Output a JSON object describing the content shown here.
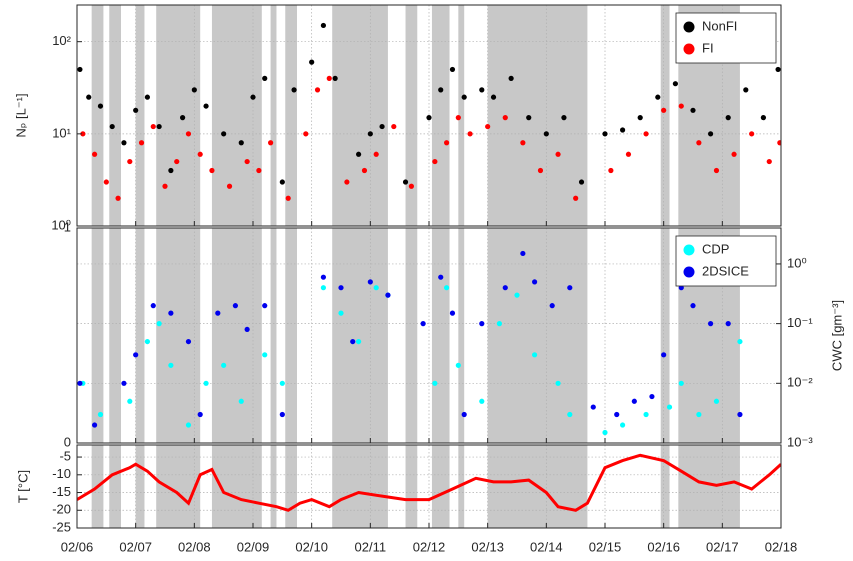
{
  "chart_data": [
    {
      "type": "scatter",
      "ylabel": "Nₚ [L⁻¹]",
      "yscale": "log",
      "ylim": [
        1,
        250
      ],
      "yticks": [
        {
          "value": 1,
          "label": "10⁰"
        },
        {
          "value": 10,
          "label": "10¹"
        },
        {
          "value": 100,
          "label": "10²"
        }
      ],
      "xlim": [
        6,
        18
      ],
      "xticks": [
        6,
        7,
        8,
        9,
        10,
        11,
        12,
        13,
        14,
        15,
        16,
        17,
        18
      ],
      "grid": true,
      "legend": "upper right",
      "shaded": [
        [
          6.25,
          6.45
        ],
        [
          6.55,
          6.75
        ],
        [
          7.0,
          7.15
        ],
        [
          7.35,
          8.1
        ],
        [
          8.3,
          9.15
        ],
        [
          9.3,
          9.4
        ],
        [
          9.55,
          9.75
        ],
        [
          10.35,
          11.3
        ],
        [
          11.6,
          11.8
        ],
        [
          12.05,
          12.35
        ],
        [
          12.5,
          12.6
        ],
        [
          13.0,
          14.7
        ],
        [
          15.95,
          16.1
        ],
        [
          16.25,
          17.3
        ]
      ],
      "series": [
        {
          "name": "NonFI",
          "color": "#000000",
          "x": [
            6.05,
            6.2,
            6.4,
            6.6,
            6.8,
            7.0,
            7.2,
            7.4,
            7.6,
            7.8,
            8.0,
            8.2,
            8.5,
            8.8,
            9.0,
            9.2,
            9.5,
            9.7,
            10.0,
            10.2,
            10.4,
            10.8,
            11.0,
            11.2,
            11.6,
            12.0,
            12.2,
            12.4,
            12.6,
            12.9,
            13.1,
            13.4,
            13.7,
            14.0,
            14.3,
            14.6,
            15.0,
            15.3,
            15.6,
            15.9,
            16.2,
            16.5,
            16.8,
            17.1,
            17.4,
            17.7,
            17.95
          ],
          "values": [
            50,
            25,
            20,
            12,
            8,
            18,
            25,
            12,
            4,
            15,
            30,
            20,
            10,
            8,
            25,
            40,
            3,
            30,
            60,
            150,
            40,
            6,
            10,
            12,
            3,
            15,
            30,
            50,
            25,
            30,
            25,
            40,
            15,
            10,
            15,
            3,
            10,
            11,
            15,
            25,
            35,
            18,
            10,
            15,
            30,
            15,
            50
          ]
        },
        {
          "name": "FI",
          "color": "#ff0000",
          "x": [
            6.1,
            6.3,
            6.5,
            6.7,
            6.9,
            7.1,
            7.3,
            7.5,
            7.7,
            7.9,
            8.1,
            8.3,
            8.6,
            8.9,
            9.1,
            9.3,
            9.6,
            9.9,
            10.1,
            10.3,
            10.6,
            10.9,
            11.1,
            11.4,
            11.7,
            12.1,
            12.3,
            12.5,
            12.7,
            13.0,
            13.3,
            13.6,
            13.9,
            14.2,
            14.5,
            15.1,
            15.4,
            15.7,
            16.0,
            16.3,
            16.6,
            16.9,
            17.2,
            17.5,
            17.8,
            17.98
          ],
          "values": [
            10,
            6,
            3,
            2,
            5,
            8,
            12,
            2.7,
            5,
            10,
            6,
            4,
            2.7,
            5,
            4,
            8,
            2,
            10,
            30,
            40,
            3,
            4,
            6,
            12,
            2.7,
            5,
            8,
            15,
            10,
            12,
            15,
            8,
            4,
            6,
            2,
            4,
            6,
            10,
            18,
            20,
            8,
            4,
            6,
            10,
            5,
            8
          ]
        }
      ]
    },
    {
      "type": "scatter",
      "ylim": [
        0,
        1
      ],
      "yticks": [
        0,
        1
      ],
      "y2label": "CWC [gm⁻³]",
      "y2scale": "log",
      "y2lim": [
        0.001,
        4
      ],
      "y2ticks": [
        {
          "value": 0.001,
          "label": "10⁻³"
        },
        {
          "value": 0.01,
          "label": "10⁻²"
        },
        {
          "value": 0.1,
          "label": "10⁻¹"
        },
        {
          "value": 1,
          "label": "10⁰"
        }
      ],
      "xlim": [
        6,
        18
      ],
      "xticks": [
        6,
        7,
        8,
        9,
        10,
        11,
        12,
        13,
        14,
        15,
        16,
        17,
        18
      ],
      "grid": true,
      "legend": "upper right",
      "series": [
        {
          "name": "CDP",
          "color": "#00ffff",
          "axis": "y2",
          "x": [
            6.1,
            6.4,
            6.9,
            7.2,
            7.4,
            7.6,
            7.9,
            8.2,
            8.5,
            8.8,
            9.2,
            9.5,
            10.2,
            10.5,
            10.8,
            11.1,
            11.3,
            12.1,
            12.3,
            12.5,
            12.9,
            13.2,
            13.5,
            13.8,
            14.2,
            14.4,
            15.0,
            15.3,
            15.7,
            16.1,
            16.3,
            16.6,
            16.9,
            17.3
          ],
          "values": [
            0.01,
            0.003,
            0.005,
            0.05,
            0.1,
            0.02,
            0.002,
            0.01,
            0.02,
            0.005,
            0.03,
            0.01,
            0.4,
            0.15,
            0.05,
            0.4,
            0.3,
            0.01,
            0.4,
            0.02,
            0.005,
            0.1,
            0.3,
            0.03,
            0.01,
            0.003,
            0.0015,
            0.002,
            0.003,
            0.004,
            0.01,
            0.003,
            0.005,
            0.05
          ]
        },
        {
          "name": "2DSICE",
          "color": "#0000ee",
          "axis": "y2",
          "x": [
            6.05,
            6.3,
            6.8,
            7.0,
            7.3,
            7.6,
            7.9,
            8.1,
            8.4,
            8.7,
            8.9,
            9.2,
            9.5,
            10.2,
            10.5,
            10.7,
            11.0,
            11.3,
            11.9,
            12.2,
            12.4,
            12.6,
            12.9,
            13.3,
            13.6,
            13.8,
            14.1,
            14.4,
            14.8,
            15.2,
            15.5,
            15.8,
            16.0,
            16.3,
            16.5,
            16.8,
            17.1,
            17.3
          ],
          "values": [
            0.01,
            0.002,
            0.01,
            0.03,
            0.2,
            0.15,
            0.05,
            0.003,
            0.15,
            0.2,
            0.08,
            0.2,
            0.003,
            0.6,
            0.4,
            0.05,
            0.5,
            0.3,
            0.1,
            0.6,
            0.15,
            0.003,
            0.1,
            0.4,
            1.5,
            0.5,
            0.2,
            0.4,
            0.004,
            0.003,
            0.005,
            0.006,
            0.03,
            0.4,
            0.2,
            0.1,
            0.1,
            0.003
          ]
        }
      ]
    },
    {
      "type": "line",
      "ylabel": "T [°C]",
      "ylim": [
        -25,
        -1.6
      ],
      "yticks": [
        -5,
        -10,
        -15,
        -20,
        -25
      ],
      "grid": true,
      "xlim": [
        6,
        18
      ],
      "xticks": [
        {
          "value": 6,
          "label": "02/06"
        },
        {
          "value": 7,
          "label": "02/07"
        },
        {
          "value": 8,
          "label": "02/08"
        },
        {
          "value": 9,
          "label": "02/09"
        },
        {
          "value": 10,
          "label": "02/10"
        },
        {
          "value": 11,
          "label": "02/11"
        },
        {
          "value": 12,
          "label": "02/12"
        },
        {
          "value": 13,
          "label": "02/13"
        },
        {
          "value": 14,
          "label": "02/14"
        },
        {
          "value": 15,
          "label": "02/15"
        },
        {
          "value": 16,
          "label": "02/16"
        },
        {
          "value": 17,
          "label": "02/17"
        },
        {
          "value": 18,
          "label": "02/18"
        }
      ],
      "series": [
        {
          "color": "#ff0000",
          "x": [
            6,
            6.3,
            6.6,
            6.9,
            7.0,
            7.2,
            7.4,
            7.7,
            7.9,
            8.1,
            8.3,
            8.5,
            8.8,
            9.1,
            9.4,
            9.6,
            9.8,
            10.0,
            10.3,
            10.5,
            10.8,
            11.2,
            11.6,
            12.0,
            12.4,
            12.8,
            13.1,
            13.4,
            13.7,
            14.0,
            14.2,
            14.5,
            14.7,
            15.0,
            15.3,
            15.6,
            16.0,
            16.3,
            16.6,
            16.9,
            17.2,
            17.5,
            17.8,
            18.0
          ],
          "values": [
            -17,
            -14,
            -10,
            -8,
            -7,
            -9,
            -12,
            -15,
            -18,
            -10,
            -8.5,
            -15,
            -17,
            -18,
            -19,
            -20,
            -18,
            -17,
            -19,
            -17,
            -15,
            -16,
            -17,
            -17,
            -14,
            -11,
            -12,
            -12,
            -11.5,
            -15,
            -19,
            -20,
            -18,
            -8,
            -6,
            -4.5,
            -6,
            -9,
            -12,
            -13,
            -12,
            -14,
            -10,
            -7
          ]
        }
      ]
    }
  ]
}
